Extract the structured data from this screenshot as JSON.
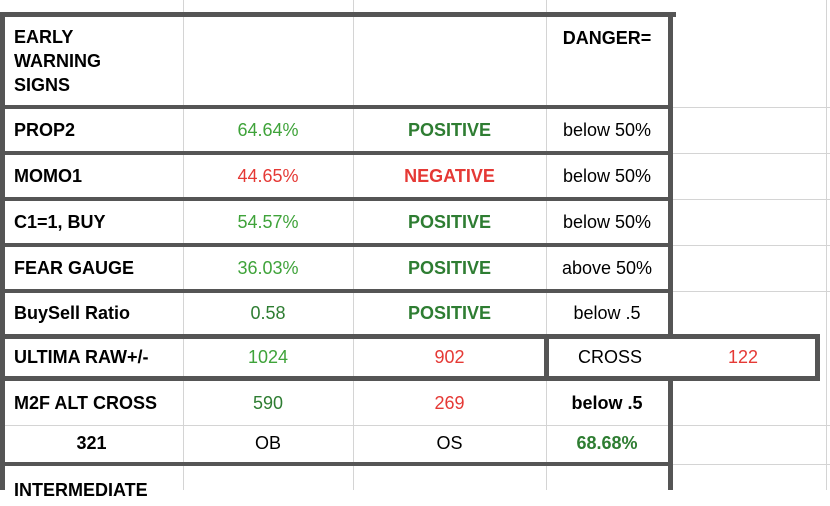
{
  "colors": {
    "green": "#3fa33a",
    "dark_green": "#2e7d32",
    "red": "#e53935",
    "black": "#000000",
    "thick_border": "#555555",
    "grid_line": "#d4d4d4"
  },
  "header": {
    "title_lines": [
      "EARLY",
      "WARNING",
      "SIGNS"
    ],
    "danger_label": "DANGER="
  },
  "rows": [
    {
      "name": "PROP2",
      "value": "64.64%",
      "status": "POSITIVE",
      "danger": "below 50%"
    },
    {
      "name": "MOMO1",
      "value": "44.65%",
      "status": "NEGATIVE",
      "danger": "below 50%"
    },
    {
      "name": "C1=1, BUY",
      "value": "54.57%",
      "status": "POSITIVE",
      "danger": "below 50%"
    },
    {
      "name": "FEAR GAUGE",
      "value": "36.03%",
      "status": "POSITIVE",
      "danger": "above 50%"
    },
    {
      "name": "BuySell Ratio",
      "value": "0.58",
      "status": "POSITIVE",
      "danger": "below .5"
    }
  ],
  "ultima": {
    "name": "ULTIMA RAW+/-",
    "plus": "1024",
    "minus": "902",
    "cross_label": "CROSS",
    "cross_value": "122"
  },
  "m2f": {
    "name": "M2F ALT CROSS",
    "ob_value": "590",
    "os_value": "269",
    "threshold": "below .5",
    "bottom_value": "321",
    "ob_label": "OB",
    "os_label": "OS",
    "percent": "68.68%"
  },
  "next_section": "INTERMEDIATE"
}
